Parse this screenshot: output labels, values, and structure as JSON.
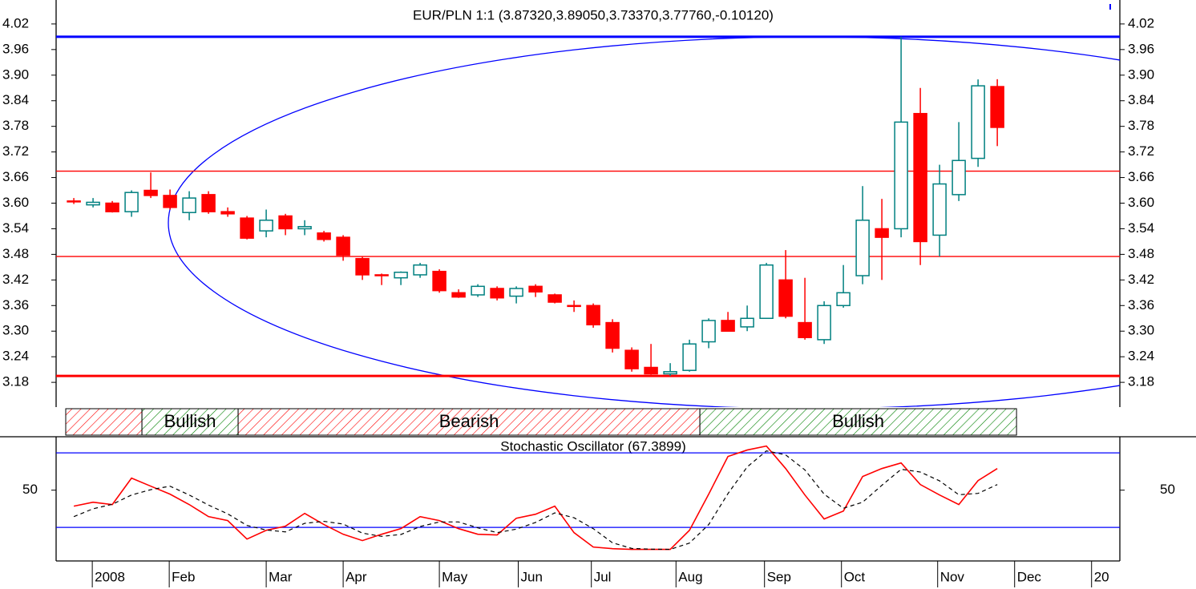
{
  "chart_data": [
    {
      "type": "candlestick",
      "title": "EUR/PLN 1:1 (3.87320,3.89050,3.73370,3.77760,-0.10120)",
      "open": [
        3.605,
        3.596,
        3.6,
        3.58,
        3.63,
        3.618,
        3.578,
        3.62,
        3.58,
        3.565,
        3.535,
        3.57,
        3.54,
        3.53,
        3.52,
        3.47,
        3.432,
        3.425,
        3.432,
        3.44,
        3.39,
        3.385,
        3.4,
        3.382,
        3.405,
        3.385,
        3.36,
        3.36,
        3.32,
        3.255,
        3.215,
        3.2,
        3.208,
        3.275,
        3.325,
        3.31,
        3.33,
        3.42,
        3.32,
        3.28,
        3.36,
        3.43,
        3.54,
        3.54,
        3.81,
        3.525,
        3.62,
        3.705,
        3.8732
      ],
      "high": [
        3.612,
        3.612,
        3.605,
        3.63,
        3.672,
        3.632,
        3.628,
        3.628,
        3.59,
        3.57,
        3.585,
        3.575,
        3.56,
        3.535,
        3.525,
        3.475,
        3.435,
        3.44,
        3.46,
        3.445,
        3.398,
        3.41,
        3.405,
        3.405,
        3.41,
        3.388,
        3.372,
        3.365,
        3.328,
        3.262,
        3.27,
        3.225,
        3.28,
        3.33,
        3.345,
        3.36,
        3.46,
        3.49,
        3.425,
        3.37,
        3.455,
        3.64,
        3.61,
        3.99,
        3.87,
        3.69,
        3.79,
        3.89,
        3.8905
      ],
      "low": [
        3.598,
        3.59,
        3.578,
        3.568,
        3.612,
        3.585,
        3.56,
        3.575,
        3.568,
        3.515,
        3.52,
        3.525,
        3.525,
        3.51,
        3.465,
        3.42,
        3.408,
        3.408,
        3.425,
        3.39,
        3.378,
        3.38,
        3.372,
        3.365,
        3.38,
        3.365,
        3.345,
        3.308,
        3.25,
        3.205,
        3.198,
        3.195,
        3.205,
        3.26,
        3.3,
        3.3,
        3.33,
        3.33,
        3.28,
        3.27,
        3.355,
        3.41,
        3.42,
        3.52,
        3.455,
        3.475,
        3.605,
        3.685,
        3.7337
      ],
      "close": [
        3.603,
        3.602,
        3.58,
        3.625,
        3.618,
        3.59,
        3.612,
        3.58,
        3.575,
        3.518,
        3.56,
        3.54,
        3.545,
        3.515,
        3.478,
        3.432,
        3.43,
        3.438,
        3.455,
        3.395,
        3.38,
        3.405,
        3.378,
        3.4,
        3.392,
        3.368,
        3.358,
        3.315,
        3.26,
        3.212,
        3.2,
        3.205,
        3.27,
        3.325,
        3.3,
        3.33,
        3.455,
        3.335,
        3.285,
        3.36,
        3.39,
        3.56,
        3.52,
        3.79,
        3.51,
        3.645,
        3.7,
        3.875,
        3.7776
      ],
      "up_color": "#008080",
      "down_color": "#ff0000",
      "xlim": [
        -0.92,
        54.37
      ],
      "ylim": [
        3.122,
        4.063
      ],
      "yticks": [
        {
          "value": 4.02,
          "label": "4.02"
        },
        {
          "value": 3.96,
          "label": "3.96"
        },
        {
          "value": 3.9,
          "label": "3.90"
        },
        {
          "value": 3.84,
          "label": "3.84"
        },
        {
          "value": 3.78,
          "label": "3.78"
        },
        {
          "value": 3.72,
          "label": "3.72"
        },
        {
          "value": 3.66,
          "label": "3.66"
        },
        {
          "value": 3.6,
          "label": "3.60"
        },
        {
          "value": 3.54,
          "label": "3.54"
        },
        {
          "value": 3.48,
          "label": "3.48"
        },
        {
          "value": 3.42,
          "label": "3.42"
        },
        {
          "value": 3.36,
          "label": "3.36"
        },
        {
          "value": 3.3,
          "label": "3.30"
        },
        {
          "value": 3.24,
          "label": "3.24"
        },
        {
          "value": 3.18,
          "label": "3.18"
        }
      ],
      "hlines": [
        {
          "value": 3.99,
          "color": "#0000ff",
          "width": 3
        },
        {
          "value": 3.675,
          "color": "#ff0000",
          "width": 1.3
        },
        {
          "value": 3.475,
          "color": "#ff0000",
          "width": 1.3
        },
        {
          "value": 3.195,
          "color": "#ff0000",
          "width": 3
        }
      ],
      "regions": [
        {
          "label": null,
          "from": -0.42,
          "to": 3.54,
          "color": "#ff0000"
        },
        {
          "label": "Bullish",
          "from": 3.54,
          "to": 8.54,
          "color": "#008000"
        },
        {
          "label": "Bearish",
          "from": 8.54,
          "to": 32.54,
          "color": "#ff0000"
        },
        {
          "label": "Bullish",
          "from": 32.54,
          "to": 49,
          "color": "#008000"
        }
      ]
    },
    {
      "type": "line",
      "title": "Stochastic Oscillator (67.3899)",
      "series": [
        {
          "color": "#ff0000",
          "dash": false,
          "values": [
            37.1,
            40.3,
            38.4,
            59.7,
            53.2,
            46.8,
            38.4,
            28.7,
            25.5,
            10.6,
            17.7,
            21.0,
            31.3,
            22.3,
            14.5,
            9.4,
            14.5,
            19.0,
            28.7,
            25.5,
            19.0,
            14.5,
            13.9,
            27.4,
            30.6,
            37.1,
            15.8,
            4.2,
            2.9,
            2.3,
            2.3,
            2.3,
            17.7,
            46.8,
            77.1,
            82.3,
            85.5,
            67.4,
            46.1,
            26.8,
            33.2,
            61.0,
            67.4,
            71.9,
            54.5,
            46.1,
            38.4,
            57.7,
            67.39
          ]
        },
        {
          "color": "#000000",
          "dash": true,
          "values": [
            28.7,
            35,
            38.6,
            46.1,
            50.4,
            53.2,
            46.1,
            38.0,
            30.9,
            21.6,
            17.9,
            16.4,
            23.3,
            24.9,
            22.7,
            15.4,
            12.8,
            14.3,
            20.7,
            24.4,
            24.4,
            19.7,
            15.8,
            18.6,
            24.0,
            31.7,
            27.8,
            19.0,
            7.6,
            3.1,
            2.5,
            2.3,
            7.4,
            22.3,
            47.2,
            68.7,
            81.6,
            78.4,
            66.3,
            46.8,
            35.4,
            40.3,
            53.9,
            66.8,
            64.6,
            57.5,
            46.3,
            47.4,
            54.5
          ]
        }
      ],
      "levels": [
        80,
        20
      ],
      "level_color": "#0000ff",
      "xlim": [
        -0.92,
        54.37
      ],
      "ylim": [
        -7,
        93
      ],
      "yticks": [
        50
      ],
      "xticks": [
        {
          "value": 0.96,
          "label": "2008"
        },
        {
          "value": 4.96,
          "label": "Feb"
        },
        {
          "value": 10,
          "label": "Mar"
        },
        {
          "value": 14,
          "label": "Apr"
        },
        {
          "value": 19,
          "label": "May"
        },
        {
          "value": 23.1,
          "label": "Jun"
        },
        {
          "value": 26.9,
          "label": "Jul"
        },
        {
          "value": 31.3,
          "label": "Aug"
        },
        {
          "value": 35.9,
          "label": "Sep"
        },
        {
          "value": 39.9,
          "label": "Oct"
        },
        {
          "value": 44.9,
          "label": "Nov"
        },
        {
          "value": 48.9,
          "label": "Dec"
        },
        {
          "value": 52.9,
          "label": "20"
        }
      ]
    }
  ]
}
